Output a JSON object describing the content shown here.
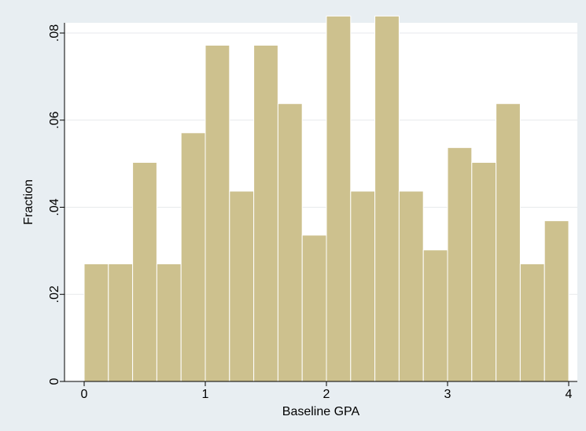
{
  "chart_data": {
    "type": "bar",
    "title": "",
    "xlabel": "Baseline GPA",
    "ylabel": "Fraction",
    "xlim": [
      0,
      4
    ],
    "ylim": [
      0,
      0.085
    ],
    "x_ticks": [
      0,
      1,
      2,
      3,
      4
    ],
    "x_tick_labels": [
      "0",
      "1",
      "2",
      "3",
      "4"
    ],
    "y_ticks": [
      0,
      0.02,
      0.04,
      0.06,
      0.08
    ],
    "y_tick_labels": [
      "0",
      ".02",
      ".04",
      ".06",
      ".08"
    ],
    "grid": true,
    "bin_edges": [
      0,
      0.2,
      0.4,
      0.6,
      0.8,
      1.0,
      1.2,
      1.4,
      1.6,
      1.8,
      2.0,
      2.2,
      2.4,
      2.6,
      2.8,
      3.0,
      3.2,
      3.4,
      3.6,
      3.8,
      4.0
    ],
    "values": [
      0.027,
      0.027,
      0.0503,
      0.027,
      0.0571,
      0.0772,
      0.0437,
      0.0772,
      0.0638,
      0.0336,
      0.0839,
      0.0437,
      0.0839,
      0.0437,
      0.0302,
      0.0537,
      0.0503,
      0.0638,
      0.027,
      0.0369
    ],
    "bar_color": "#cdc18e",
    "plot_background": "#ffffff",
    "page_background": "#e8eef2"
  }
}
